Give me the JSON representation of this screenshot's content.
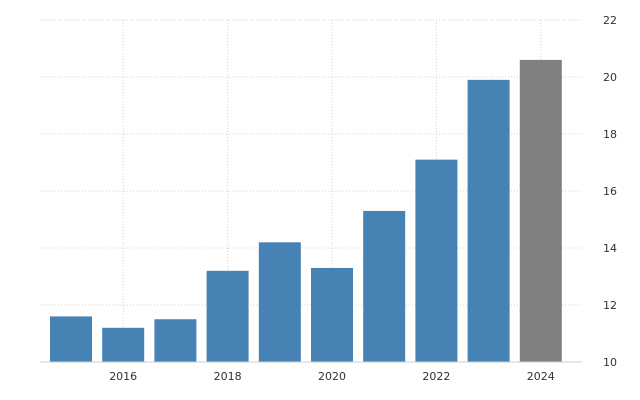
{
  "chart_data": {
    "type": "bar",
    "categories": [
      "2015",
      "2016",
      "2017",
      "2018",
      "2019",
      "2020",
      "2021",
      "2022",
      "2023",
      "2024"
    ],
    "values": [
      11.6,
      11.2,
      11.5,
      13.2,
      14.2,
      13.3,
      15.3,
      17.1,
      19.9,
      20.6
    ],
    "ylim": [
      10,
      22
    ],
    "yticks": [
      10,
      12,
      14,
      16,
      18,
      20,
      22
    ],
    "xtick_labels": [
      "2016",
      "2018",
      "2020",
      "2022",
      "2024"
    ],
    "y_axis_side": "right",
    "grid": true,
    "colors": {
      "bar": "#4682b4",
      "highlight_bar": "#808080"
    },
    "highlight_category": "2024",
    "xlabel": "",
    "ylabel": ""
  }
}
